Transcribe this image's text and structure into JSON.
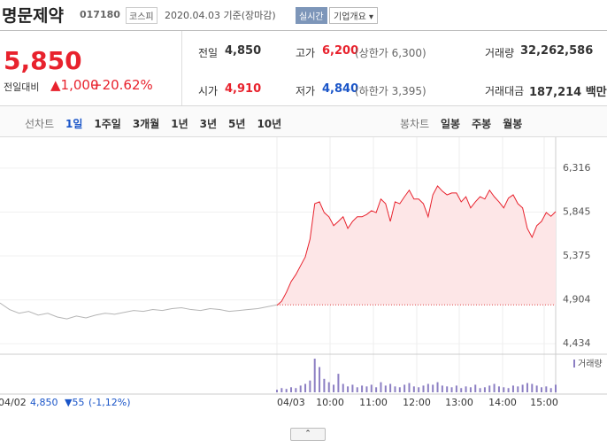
{
  "header": {
    "name": "명문제약",
    "code": "017180",
    "market": "코스피",
    "date": "2020.04.03 기준(장마감)",
    "badge": "실시간",
    "button": "기업개요"
  },
  "price": {
    "current": "5,850",
    "change_label": "전일대비",
    "change": "1,000",
    "change_rate": "+20.62%"
  },
  "stats": [
    {
      "label": "전일",
      "value": "4,850"
    },
    {
      "label": "고가",
      "value": "6,200",
      "note": "(상한가 6,300)"
    },
    {
      "label": "거래량",
      "value": "32,262,586"
    },
    {
      "label": "시가",
      "value": "4,910"
    },
    {
      "label": "저가",
      "value": "4,840",
      "note": "(하한가 3,395)"
    },
    {
      "label": "거래대금",
      "value": "187,214 백만"
    }
  ],
  "tabs": {
    "line_label": "선차트",
    "line": [
      "1일",
      "1주일",
      "3개월",
      "1년",
      "3년",
      "5년",
      "10년"
    ],
    "candle_label": "봉차트",
    "candle": [
      "일봉",
      "주봉",
      "월봉"
    ]
  },
  "chart_data": {
    "type": "line",
    "ylim": [
      4340,
      6600
    ],
    "yticks": [
      {
        "value": 6316,
        "label": "6,316"
      },
      {
        "value": 5845,
        "label": "5,845"
      },
      {
        "value": 5375,
        "label": "5,375"
      },
      {
        "value": 4904,
        "label": "4,904"
      },
      {
        "value": 4434,
        "label": "4,434"
      }
    ],
    "baseline": 4850,
    "x_labels": [
      "04/02",
      "04/03",
      "10:00",
      "11:00",
      "12:00",
      "13:00",
      "14:00",
      "15:00"
    ],
    "series": [
      {
        "color": "#b5b5b5",
        "values": [
          4870,
          4800,
          4760,
          4780,
          4740,
          4760,
          4720,
          4700,
          4730,
          4710,
          4740,
          4760,
          4750,
          4770,
          4790,
          4780,
          4800,
          4790,
          4810,
          4820,
          4800,
          4790,
          4810,
          4800,
          4780,
          4790,
          4800,
          4810,
          4830,
          4850
        ]
      },
      {
        "color": "#e8222d",
        "values": [
          4845,
          4890,
          4985,
          5100,
          5175,
          5270,
          5365,
          5555,
          5935,
          5955,
          5840,
          5795,
          5700,
          5745,
          5795,
          5670,
          5745,
          5795,
          5795,
          5820,
          5860,
          5840,
          5985,
          5935,
          5745,
          5955,
          5935,
          6010,
          6080,
          5985,
          5985,
          5935,
          5795,
          6030,
          6125,
          6070,
          6030,
          6050,
          6050,
          5955,
          6010,
          5890,
          5955,
          6010,
          5985,
          6080,
          6010,
          5955,
          5890,
          5995,
          6030,
          5935,
          5890,
          5670,
          5575,
          5700,
          5745,
          5840,
          5800,
          5850
        ]
      }
    ],
    "volume": {
      "label": "거래량",
      "color": "#8c7fc3",
      "values": [
        3,
        5,
        4,
        6,
        5,
        8,
        10,
        14,
        40,
        30,
        16,
        12,
        9,
        22,
        10,
        7,
        9,
        6,
        8,
        7,
        9,
        6,
        12,
        8,
        10,
        7,
        6,
        9,
        11,
        7,
        6,
        8,
        10,
        9,
        12,
        8,
        7,
        6,
        8,
        5,
        7,
        6,
        9,
        5,
        6,
        8,
        10,
        7,
        6,
        5,
        8,
        7,
        9,
        11,
        10,
        8,
        6,
        7,
        5,
        9
      ]
    }
  },
  "footer": {
    "date": "04/02",
    "close": "4,850",
    "change": "▼55",
    "rate": "(-1,12%)"
  }
}
